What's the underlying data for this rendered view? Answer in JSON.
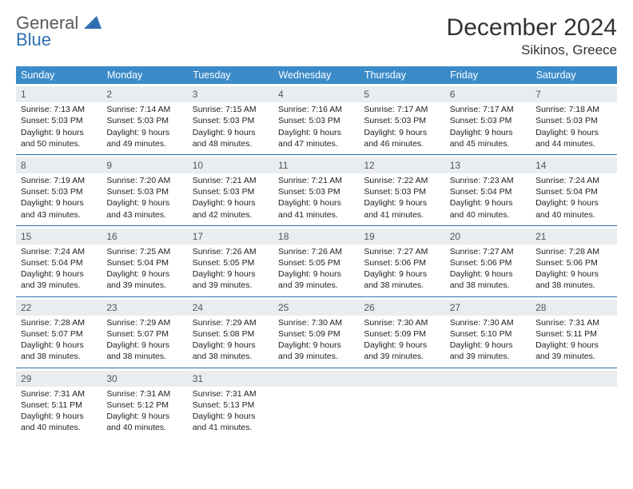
{
  "logo": {
    "word1": "General",
    "word2": "Blue",
    "iconColor": "#2f6fb0"
  },
  "title": "December 2024",
  "location": "Sikinos, Greece",
  "header_bg": "#3b8bc9",
  "daynum_bg": "#e9edf0",
  "border_color": "#2f6fb0",
  "columns": [
    "Sunday",
    "Monday",
    "Tuesday",
    "Wednesday",
    "Thursday",
    "Friday",
    "Saturday"
  ],
  "weeks": [
    [
      {
        "n": "1",
        "sr": "7:13 AM",
        "ss": "5:03 PM",
        "dl": "9 hours and 50 minutes."
      },
      {
        "n": "2",
        "sr": "7:14 AM",
        "ss": "5:03 PM",
        "dl": "9 hours and 49 minutes."
      },
      {
        "n": "3",
        "sr": "7:15 AM",
        "ss": "5:03 PM",
        "dl": "9 hours and 48 minutes."
      },
      {
        "n": "4",
        "sr": "7:16 AM",
        "ss": "5:03 PM",
        "dl": "9 hours and 47 minutes."
      },
      {
        "n": "5",
        "sr": "7:17 AM",
        "ss": "5:03 PM",
        "dl": "9 hours and 46 minutes."
      },
      {
        "n": "6",
        "sr": "7:17 AM",
        "ss": "5:03 PM",
        "dl": "9 hours and 45 minutes."
      },
      {
        "n": "7",
        "sr": "7:18 AM",
        "ss": "5:03 PM",
        "dl": "9 hours and 44 minutes."
      }
    ],
    [
      {
        "n": "8",
        "sr": "7:19 AM",
        "ss": "5:03 PM",
        "dl": "9 hours and 43 minutes."
      },
      {
        "n": "9",
        "sr": "7:20 AM",
        "ss": "5:03 PM",
        "dl": "9 hours and 43 minutes."
      },
      {
        "n": "10",
        "sr": "7:21 AM",
        "ss": "5:03 PM",
        "dl": "9 hours and 42 minutes."
      },
      {
        "n": "11",
        "sr": "7:21 AM",
        "ss": "5:03 PM",
        "dl": "9 hours and 41 minutes."
      },
      {
        "n": "12",
        "sr": "7:22 AM",
        "ss": "5:03 PM",
        "dl": "9 hours and 41 minutes."
      },
      {
        "n": "13",
        "sr": "7:23 AM",
        "ss": "5:04 PM",
        "dl": "9 hours and 40 minutes."
      },
      {
        "n": "14",
        "sr": "7:24 AM",
        "ss": "5:04 PM",
        "dl": "9 hours and 40 minutes."
      }
    ],
    [
      {
        "n": "15",
        "sr": "7:24 AM",
        "ss": "5:04 PM",
        "dl": "9 hours and 39 minutes."
      },
      {
        "n": "16",
        "sr": "7:25 AM",
        "ss": "5:04 PM",
        "dl": "9 hours and 39 minutes."
      },
      {
        "n": "17",
        "sr": "7:26 AM",
        "ss": "5:05 PM",
        "dl": "9 hours and 39 minutes."
      },
      {
        "n": "18",
        "sr": "7:26 AM",
        "ss": "5:05 PM",
        "dl": "9 hours and 39 minutes."
      },
      {
        "n": "19",
        "sr": "7:27 AM",
        "ss": "5:06 PM",
        "dl": "9 hours and 38 minutes."
      },
      {
        "n": "20",
        "sr": "7:27 AM",
        "ss": "5:06 PM",
        "dl": "9 hours and 38 minutes."
      },
      {
        "n": "21",
        "sr": "7:28 AM",
        "ss": "5:06 PM",
        "dl": "9 hours and 38 minutes."
      }
    ],
    [
      {
        "n": "22",
        "sr": "7:28 AM",
        "ss": "5:07 PM",
        "dl": "9 hours and 38 minutes."
      },
      {
        "n": "23",
        "sr": "7:29 AM",
        "ss": "5:07 PM",
        "dl": "9 hours and 38 minutes."
      },
      {
        "n": "24",
        "sr": "7:29 AM",
        "ss": "5:08 PM",
        "dl": "9 hours and 38 minutes."
      },
      {
        "n": "25",
        "sr": "7:30 AM",
        "ss": "5:09 PM",
        "dl": "9 hours and 39 minutes."
      },
      {
        "n": "26",
        "sr": "7:30 AM",
        "ss": "5:09 PM",
        "dl": "9 hours and 39 minutes."
      },
      {
        "n": "27",
        "sr": "7:30 AM",
        "ss": "5:10 PM",
        "dl": "9 hours and 39 minutes."
      },
      {
        "n": "28",
        "sr": "7:31 AM",
        "ss": "5:11 PM",
        "dl": "9 hours and 39 minutes."
      }
    ],
    [
      {
        "n": "29",
        "sr": "7:31 AM",
        "ss": "5:11 PM",
        "dl": "9 hours and 40 minutes."
      },
      {
        "n": "30",
        "sr": "7:31 AM",
        "ss": "5:12 PM",
        "dl": "9 hours and 40 minutes."
      },
      {
        "n": "31",
        "sr": "7:31 AM",
        "ss": "5:13 PM",
        "dl": "9 hours and 41 minutes."
      },
      null,
      null,
      null,
      null
    ]
  ],
  "labels": {
    "sunrise": "Sunrise:",
    "sunset": "Sunset:",
    "daylight": "Daylight:"
  }
}
